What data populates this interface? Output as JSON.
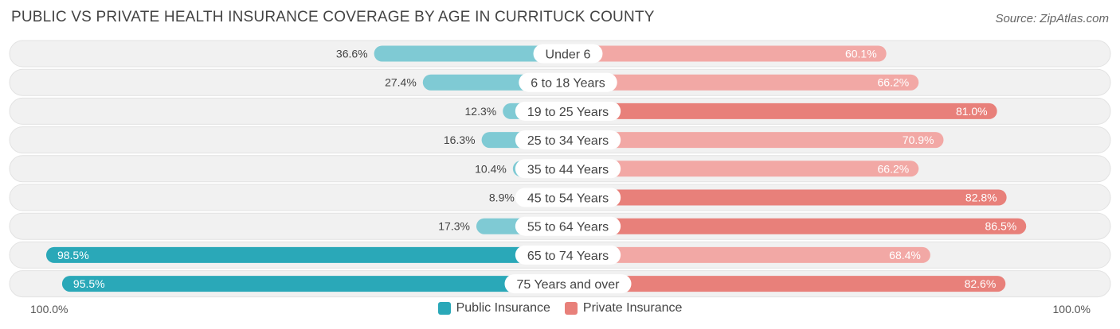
{
  "header": {
    "title": "PUBLIC VS PRIVATE HEALTH INSURANCE COVERAGE BY AGE IN CURRITUCK COUNTY",
    "source": "Source: ZipAtlas.com"
  },
  "colors": {
    "public_light": "#7fcad4",
    "public_dark": "#2aa8b8",
    "private_light": "#f2a8a5",
    "private_dark": "#e8807a",
    "row_bg": "#f1f1f1",
    "row_border": "#e2e2e2"
  },
  "axis": {
    "left_label": "100.0%",
    "right_label": "100.0%"
  },
  "legend": {
    "public": "Public Insurance",
    "private": "Private Insurance"
  },
  "chart_data": {
    "type": "bar",
    "orientation": "diverging-horizontal",
    "categories": [
      "Under 6",
      "6 to 18 Years",
      "19 to 25 Years",
      "25 to 34 Years",
      "35 to 44 Years",
      "45 to 54 Years",
      "55 to 64 Years",
      "65 to 74 Years",
      "75 Years and over"
    ],
    "series": [
      {
        "name": "Public Insurance",
        "values": [
          36.6,
          27.4,
          12.3,
          16.3,
          10.4,
          8.9,
          17.3,
          98.5,
          95.5
        ],
        "labels": [
          "36.6%",
          "27.4%",
          "12.3%",
          "16.3%",
          "10.4%",
          "8.9%",
          "17.3%",
          "98.5%",
          "95.5%"
        ]
      },
      {
        "name": "Private Insurance",
        "values": [
          60.1,
          66.2,
          81.0,
          70.9,
          66.2,
          82.8,
          86.5,
          68.4,
          82.6
        ],
        "labels": [
          "60.1%",
          "66.2%",
          "81.0%",
          "70.9%",
          "66.2%",
          "82.8%",
          "86.5%",
          "68.4%",
          "82.6%"
        ]
      }
    ],
    "xlim": [
      -100,
      100
    ],
    "legend_position": "bottom-center"
  }
}
